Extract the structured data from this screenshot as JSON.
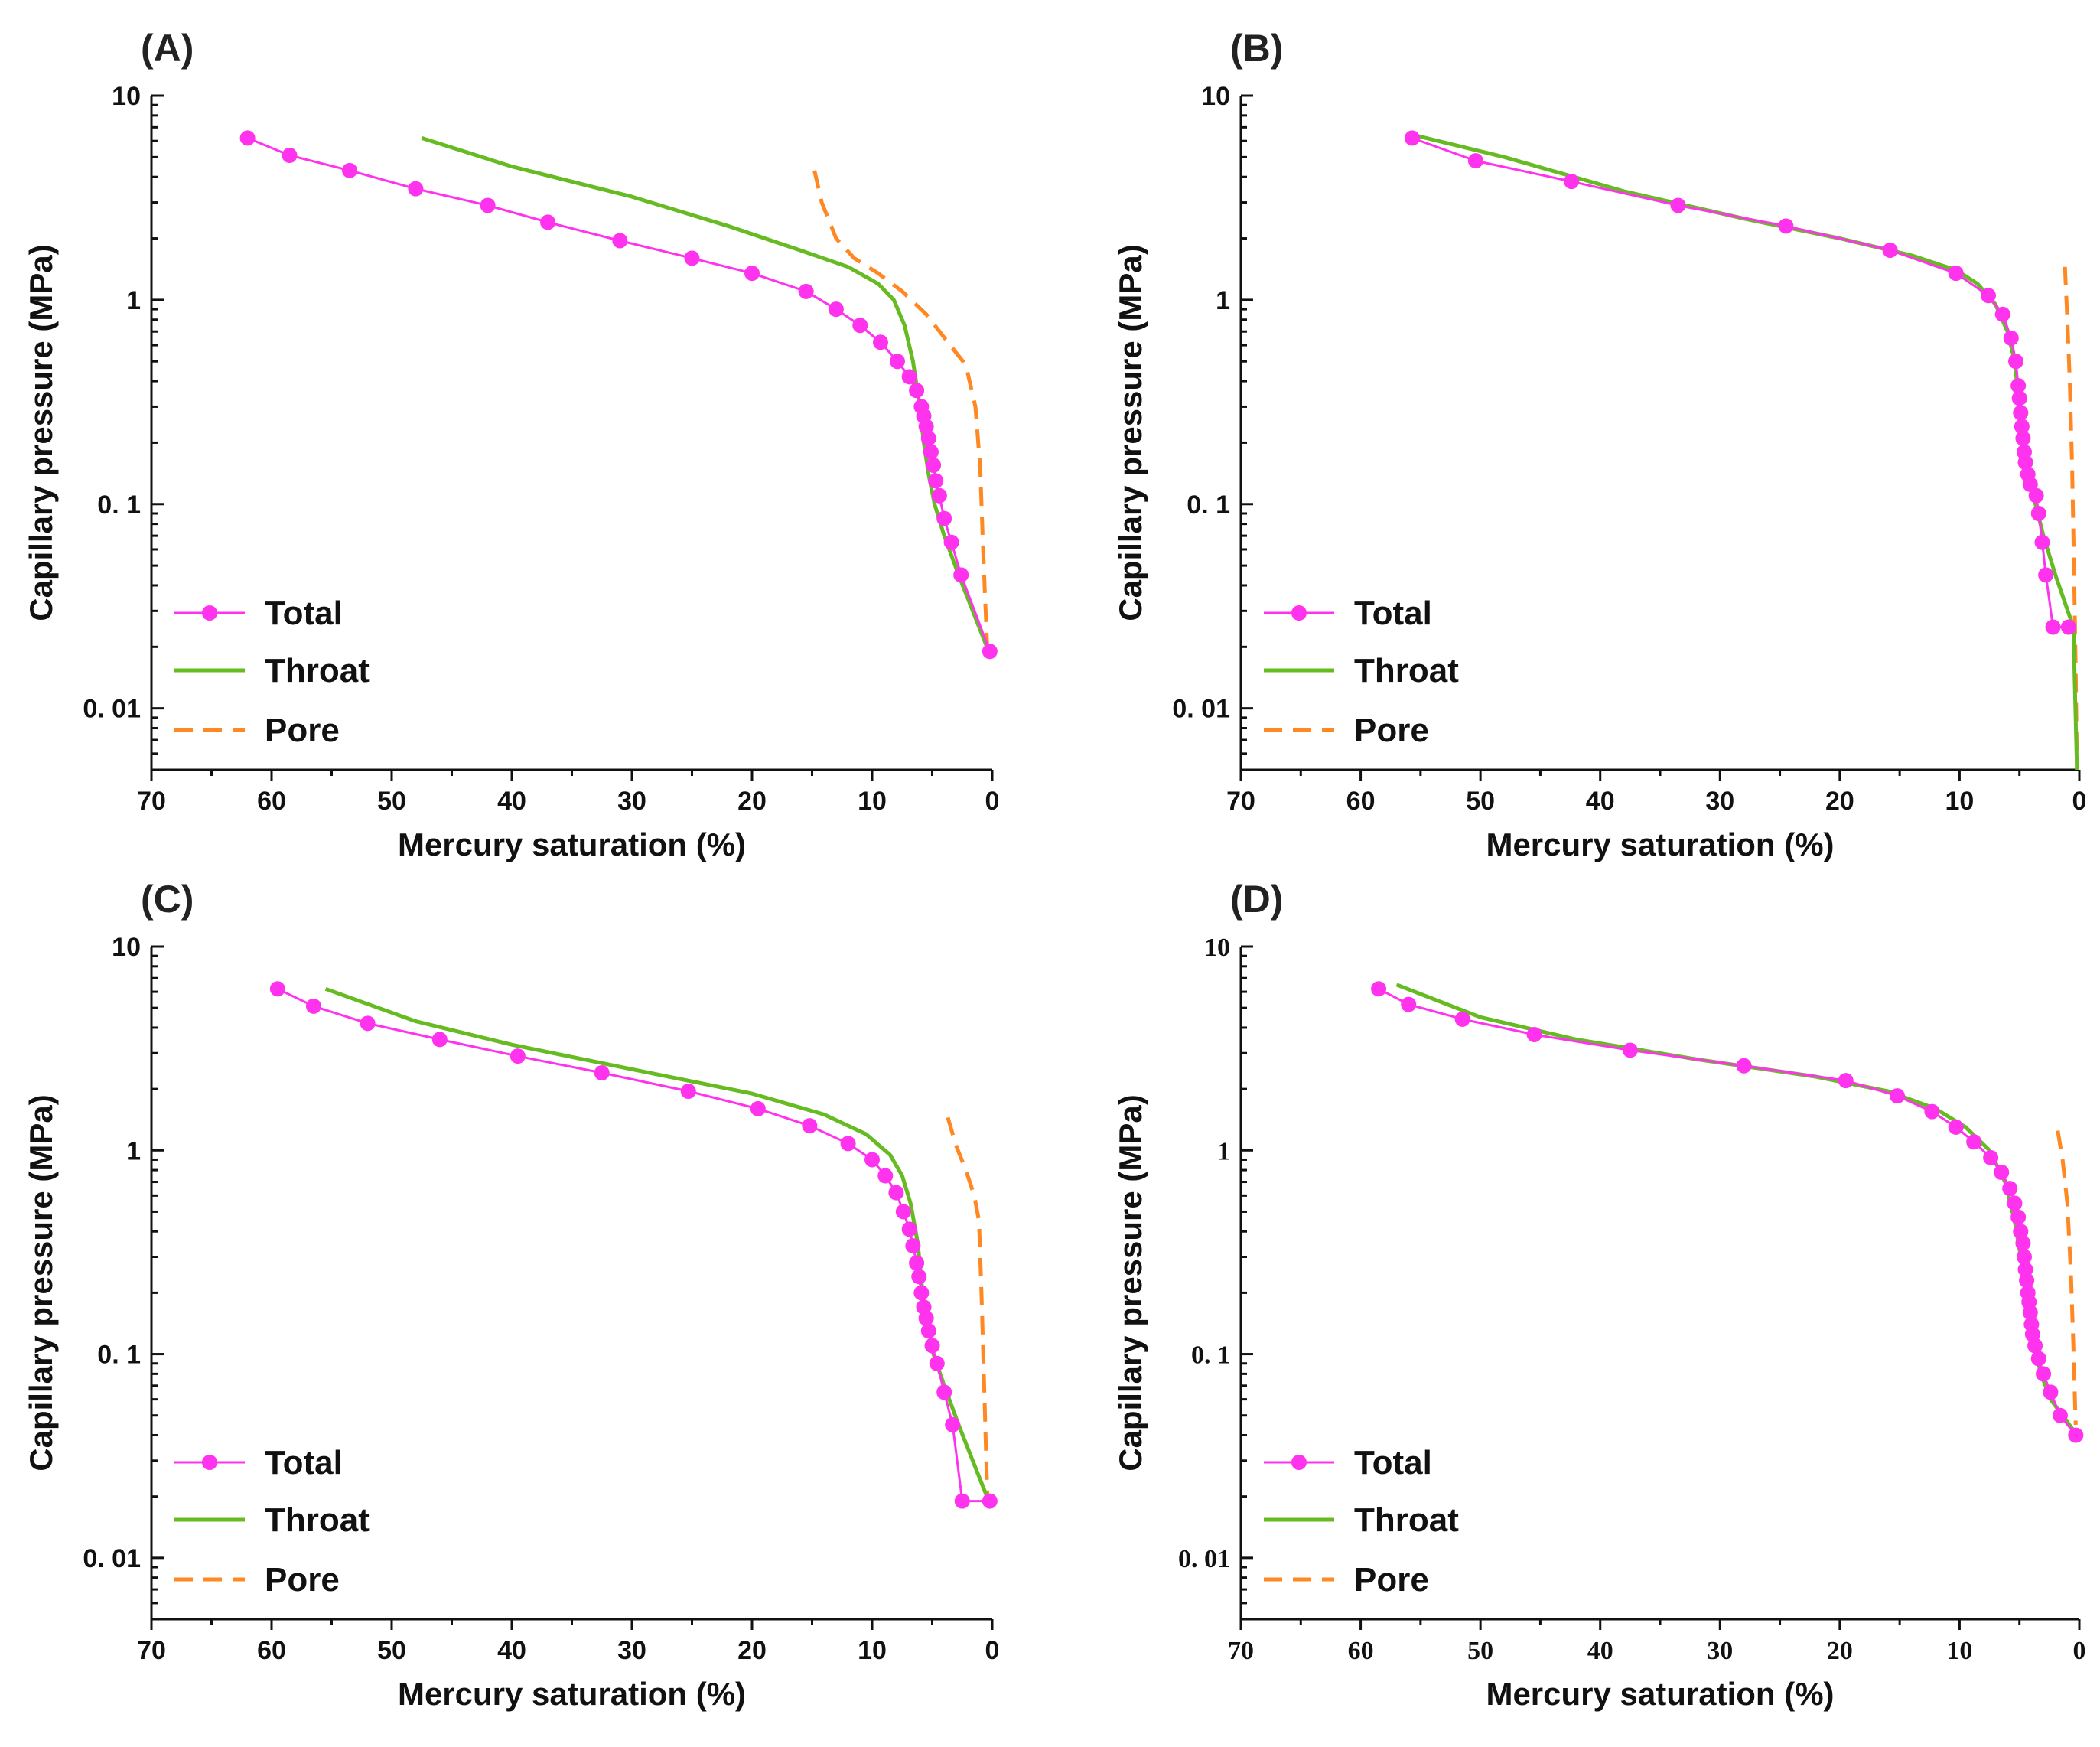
{
  "colors": {
    "total": "#ff33ee",
    "throat": "#66bb22",
    "pore": "#ff8822",
    "axis": "#111111"
  },
  "chart_data": [
    {
      "id": "A",
      "panel_label": "(A)",
      "type": "line",
      "xlabel": "Mercury saturation (%)",
      "ylabel": "Capillary pressure (MPa)",
      "xlim": [
        70,
        0
      ],
      "ylim": [
        0.005,
        10
      ],
      "yscale": "log",
      "xticks": [
        "70",
        "60",
        "50",
        "40",
        "30",
        "20",
        "10",
        "0"
      ],
      "yticks": [
        "10",
        "1",
        "0. 1",
        "0. 01"
      ],
      "legend_position": "bottom-left",
      "series": [
        {
          "name": "Total",
          "style": "line-marker",
          "x": [
            62,
            58.5,
            53.5,
            48,
            42,
            37,
            31,
            25,
            20,
            15.5,
            13,
            11,
            9.3,
            7.9,
            6.9,
            6.3,
            5.9,
            5.7,
            5.5,
            5.3,
            5.1,
            4.9,
            4.7,
            4.4,
            4.0,
            3.4,
            2.6,
            0.2
          ],
          "y": [
            6.2,
            5.1,
            4.3,
            3.5,
            2.9,
            2.4,
            1.95,
            1.6,
            1.35,
            1.1,
            0.9,
            0.75,
            0.62,
            0.5,
            0.42,
            0.36,
            0.3,
            0.27,
            0.24,
            0.21,
            0.18,
            0.155,
            0.13,
            0.11,
            0.085,
            0.065,
            0.045,
            0.019
          ]
        },
        {
          "name": "Throat",
          "style": "line",
          "x": [
            47.5,
            40,
            30,
            22,
            16,
            12,
            9.5,
            8.2,
            7.3,
            6.6,
            6.1,
            5.7,
            5.3,
            4.8,
            4.0,
            2.8,
            0.3
          ],
          "y": [
            6.2,
            4.5,
            3.2,
            2.3,
            1.75,
            1.45,
            1.2,
            1.0,
            0.75,
            0.5,
            0.32,
            0.2,
            0.14,
            0.1,
            0.07,
            0.045,
            0.019
          ]
        },
        {
          "name": "Pore",
          "style": "dashed",
          "x": [
            14.8,
            14.2,
            13,
            11.5,
            9.5,
            7.5,
            5.5,
            3.5,
            2.2,
            1.4,
            1.0,
            0.8,
            0.6,
            0.4
          ],
          "y": [
            4.3,
            3.0,
            2.0,
            1.6,
            1.35,
            1.1,
            0.85,
            0.6,
            0.48,
            0.3,
            0.15,
            0.07,
            0.035,
            0.019
          ]
        }
      ]
    },
    {
      "id": "B",
      "panel_label": "(B)",
      "type": "line",
      "xlabel": "Mercury saturation (%)",
      "ylabel": "Capillary pressure (MPa)",
      "xlim": [
        70,
        0
      ],
      "ylim": [
        0.005,
        10
      ],
      "yscale": "log",
      "xticks": [
        "70",
        "60",
        "50",
        "40",
        "30",
        "20",
        "10",
        "0"
      ],
      "yticks": [
        "10",
        "1",
        "0. 1",
        "0. 01"
      ],
      "legend_position": "bottom-left",
      "series": [
        {
          "name": "Total",
          "style": "line-marker",
          "x": [
            55.7,
            50.4,
            42.4,
            33.5,
            24.5,
            15.8,
            10.3,
            7.6,
            6.4,
            5.7,
            5.3,
            5.1,
            5.0,
            4.9,
            4.8,
            4.7,
            4.6,
            4.5,
            4.3,
            4.1,
            3.6,
            3.4,
            3.1,
            2.8,
            2.2,
            0.9
          ],
          "y": [
            6.2,
            4.8,
            3.8,
            2.9,
            2.3,
            1.75,
            1.35,
            1.05,
            0.85,
            0.65,
            0.5,
            0.38,
            0.33,
            0.28,
            0.24,
            0.21,
            0.18,
            0.16,
            0.14,
            0.125,
            0.11,
            0.09,
            0.065,
            0.045,
            0.025,
            0.025
          ]
        },
        {
          "name": "Throat",
          "style": "line",
          "x": [
            55.5,
            48,
            38,
            28,
            20,
            14,
            10.3,
            8.5,
            7,
            6.0,
            5.4,
            5.0,
            4.6,
            4.0,
            3.0,
            2.0,
            0.5,
            0.2
          ],
          "y": [
            6.4,
            5.0,
            3.4,
            2.5,
            2.0,
            1.65,
            1.4,
            1.2,
            0.95,
            0.7,
            0.5,
            0.3,
            0.18,
            0.12,
            0.07,
            0.045,
            0.025,
            0.005
          ]
        },
        {
          "name": "Pore",
          "style": "dashed",
          "x": [
            1.2,
            1.0,
            0.8,
            0.6,
            0.45,
            0.3,
            0.2
          ],
          "y": [
            1.45,
            0.8,
            0.4,
            0.15,
            0.05,
            0.015,
            0.005
          ]
        }
      ]
    },
    {
      "id": "C",
      "panel_label": "(C)",
      "type": "line",
      "xlabel": "Mercury saturation (%)",
      "ylabel": "Capillary pressure (MPa)",
      "xlim": [
        70,
        0
      ],
      "ylim": [
        0.005,
        10
      ],
      "yscale": "log",
      "xticks": [
        "70",
        "60",
        "50",
        "40",
        "30",
        "20",
        "10",
        "0"
      ],
      "yticks": [
        "10",
        "1",
        "0. 1",
        "0. 01"
      ],
      "legend_position": "bottom-left",
      "series": [
        {
          "name": "Total",
          "style": "line-marker",
          "x": [
            59.5,
            56.5,
            52,
            46,
            39.5,
            32.5,
            25.3,
            19.5,
            15.2,
            12,
            10,
            8.9,
            8.0,
            7.4,
            6.9,
            6.6,
            6.3,
            6.1,
            5.9,
            5.7,
            5.5,
            5.3,
            5.0,
            4.6,
            4.0,
            3.3,
            2.5,
            0.2
          ],
          "y": [
            6.2,
            5.1,
            4.2,
            3.5,
            2.9,
            2.4,
            1.95,
            1.6,
            1.32,
            1.08,
            0.9,
            0.75,
            0.62,
            0.5,
            0.41,
            0.34,
            0.28,
            0.24,
            0.2,
            0.17,
            0.15,
            0.13,
            0.11,
            0.09,
            0.065,
            0.045,
            0.019,
            0.019
          ]
        },
        {
          "name": "Throat",
          "style": "line",
          "x": [
            55.5,
            48,
            40,
            30,
            20,
            14,
            10.5,
            8.5,
            7.5,
            6.8,
            6.2,
            5.8,
            5.4,
            4.9,
            4.0,
            2.8,
            0.3
          ],
          "y": [
            6.2,
            4.3,
            3.3,
            2.5,
            1.9,
            1.5,
            1.2,
            0.95,
            0.75,
            0.55,
            0.35,
            0.2,
            0.14,
            0.1,
            0.07,
            0.045,
            0.019
          ]
        },
        {
          "name": "Pore",
          "style": "dashed",
          "x": [
            3.7,
            3.0,
            2.2,
            1.5,
            1.1,
            0.9,
            0.7,
            0.5,
            0.4
          ],
          "y": [
            1.45,
            1.05,
            0.8,
            0.6,
            0.45,
            0.2,
            0.08,
            0.03,
            0.02
          ]
        }
      ]
    },
    {
      "id": "D",
      "panel_label": "(D)",
      "type": "line",
      "xlabel": "Mercury saturation (%)",
      "ylabel": "Capillary pressure (MPa)",
      "xlim": [
        70,
        0
      ],
      "ylim": [
        0.005,
        10
      ],
      "yscale": "log",
      "xticks": [
        "70",
        "60",
        "50",
        "40",
        "30",
        "20",
        "10",
        "0"
      ],
      "yticks": [
        "10",
        "1",
        "0. 1",
        "0. 01"
      ],
      "serif_ticks": true,
      "legend_position": "bottom-left",
      "series": [
        {
          "name": "Total",
          "style": "line-marker",
          "x": [
            58.5,
            56,
            51.5,
            45.5,
            37.5,
            28,
            19.5,
            15.2,
            12.3,
            10.3,
            8.8,
            7.4,
            6.5,
            5.8,
            5.4,
            5.1,
            4.9,
            4.7,
            4.6,
            4.5,
            4.4,
            4.3,
            4.2,
            4.1,
            4.0,
            3.9,
            3.7,
            3.4,
            3.0,
            2.4,
            1.6,
            0.3
          ],
          "y": [
            6.2,
            5.2,
            4.4,
            3.7,
            3.1,
            2.6,
            2.2,
            1.85,
            1.55,
            1.3,
            1.1,
            0.92,
            0.78,
            0.65,
            0.55,
            0.47,
            0.4,
            0.35,
            0.3,
            0.26,
            0.23,
            0.2,
            0.18,
            0.16,
            0.14,
            0.125,
            0.11,
            0.095,
            0.08,
            0.065,
            0.05,
            0.04
          ]
        },
        {
          "name": "Throat",
          "style": "line",
          "x": [
            57,
            50,
            42,
            32,
            22,
            16,
            12,
            9.5,
            7.5,
            6.2,
            5.4,
            4.8,
            4.3,
            3.8,
            3.2,
            2.4,
            0.2
          ],
          "y": [
            6.5,
            4.5,
            3.5,
            2.8,
            2.3,
            1.95,
            1.6,
            1.3,
            1.0,
            0.7,
            0.45,
            0.28,
            0.17,
            0.11,
            0.08,
            0.06,
            0.04
          ]
        },
        {
          "name": "Pore",
          "style": "dashed",
          "x": [
            1.8,
            1.4,
            1.0,
            0.7,
            0.5,
            0.35,
            0.3
          ],
          "y": [
            1.25,
            0.9,
            0.55,
            0.25,
            0.11,
            0.055,
            0.045
          ]
        }
      ]
    }
  ]
}
